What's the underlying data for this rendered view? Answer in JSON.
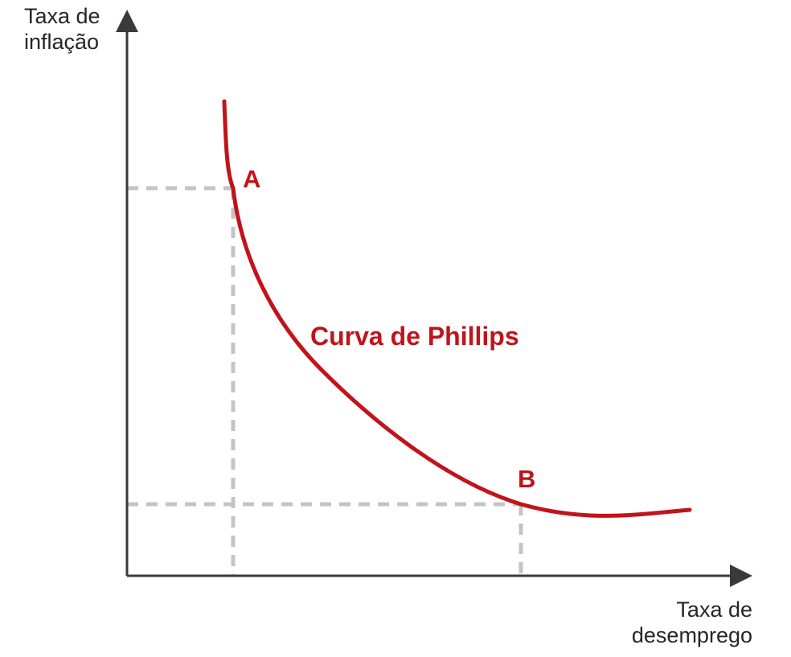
{
  "diagram": {
    "y_axis_label": [
      "Taxa de",
      "inflação"
    ],
    "x_axis_label": [
      "Taxa de",
      "desemprego"
    ],
    "curve_label": "Curva de Phillips",
    "point_a_label": "A",
    "point_b_label": "B",
    "colors": {
      "curve": "#c0141a",
      "axis": "#3a3a3a",
      "guide": "#c4c4c4",
      "text": "#262626"
    }
  }
}
